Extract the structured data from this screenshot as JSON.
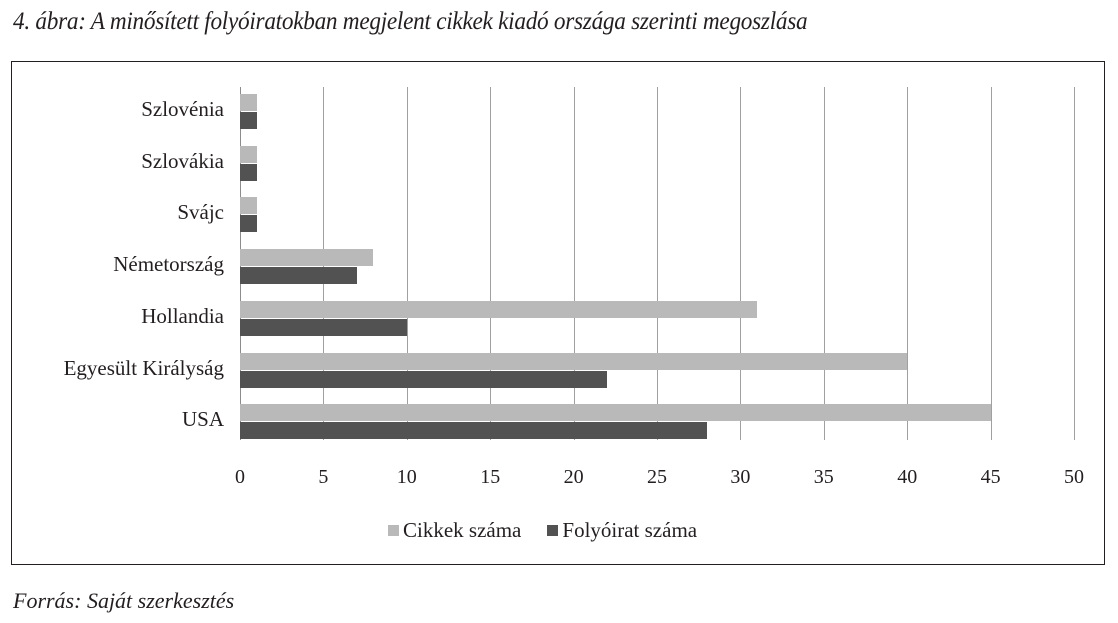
{
  "figure": {
    "title": "4. ábra: A minősített folyóiratokban megjelent cikkek kiadó országa szerinti megoszlása",
    "source": "Forrás: Saját szerkesztés"
  },
  "colors": {
    "cikkek": "#b9b9b9",
    "folyoirat": "#525252",
    "grid": "#a0a0a0"
  },
  "chart_data": {
    "type": "bar",
    "orientation": "horizontal",
    "title": "4. ábra: A minősített folyóiratokban megjelent cikkek kiadó országa szerinti megoszlása",
    "categories": [
      "Szlovénia",
      "Szlovákia",
      "Svájc",
      "Németország",
      "Hollandia",
      "Egyesült Királyság",
      "USA"
    ],
    "series": [
      {
        "name": "Cikkek száma",
        "color": "#b9b9b9",
        "values": [
          1,
          1,
          1,
          8,
          31,
          40,
          45
        ]
      },
      {
        "name": "Folyóirat száma",
        "color": "#525252",
        "values": [
          1,
          1,
          1,
          7,
          10,
          22,
          28
        ]
      }
    ],
    "xlabel": "",
    "ylabel": "",
    "xlim": [
      0,
      50
    ],
    "xticks": [
      "0",
      "5",
      "10",
      "15",
      "20",
      "25",
      "30",
      "35",
      "40",
      "45",
      "50"
    ],
    "grid": true,
    "legend_position": "bottom"
  }
}
